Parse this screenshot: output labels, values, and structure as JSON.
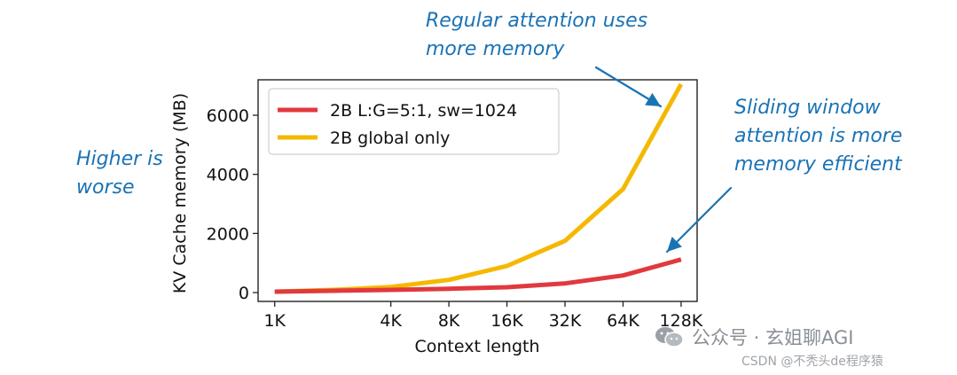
{
  "chart_data": {
    "type": "line",
    "title": "",
    "xlabel": "Context length",
    "ylabel": "KV Cache memory (MB)",
    "x_scale": "log2",
    "x_categories": [
      "1K",
      "4K",
      "8K",
      "16K",
      "32K",
      "64K",
      "128K"
    ],
    "x": [
      1,
      2,
      4,
      8,
      16,
      32,
      64,
      128
    ],
    "x_tick_values": [
      1,
      4,
      8,
      16,
      32,
      64,
      128
    ],
    "y_ticks": [
      0,
      2000,
      4000,
      6000
    ],
    "ylim": [
      -300,
      7200
    ],
    "grid": false,
    "legend_position": "top-left",
    "series": [
      {
        "name": "2B L:G=5:1, sw=1024",
        "color": "#e0393e",
        "values": [
          30,
          60,
          90,
          130,
          180,
          310,
          580,
          1120
        ]
      },
      {
        "name": "2B global only",
        "color": "#f5b800",
        "values": [
          30,
          90,
          190,
          430,
          900,
          1750,
          3500,
          7050
        ]
      }
    ]
  },
  "annotations": {
    "regular": [
      "Regular attention uses",
      "more memory"
    ],
    "higher": [
      "Higher is",
      "worse"
    ],
    "sliding": [
      "Sliding window",
      "attention is more",
      "memory efficient"
    ]
  },
  "annotation_color": "#1a73b5",
  "watermark": {
    "brand": "公众号 · 玄姐聊AGI",
    "credit": "CSDN @不秃头de程序猿"
  }
}
